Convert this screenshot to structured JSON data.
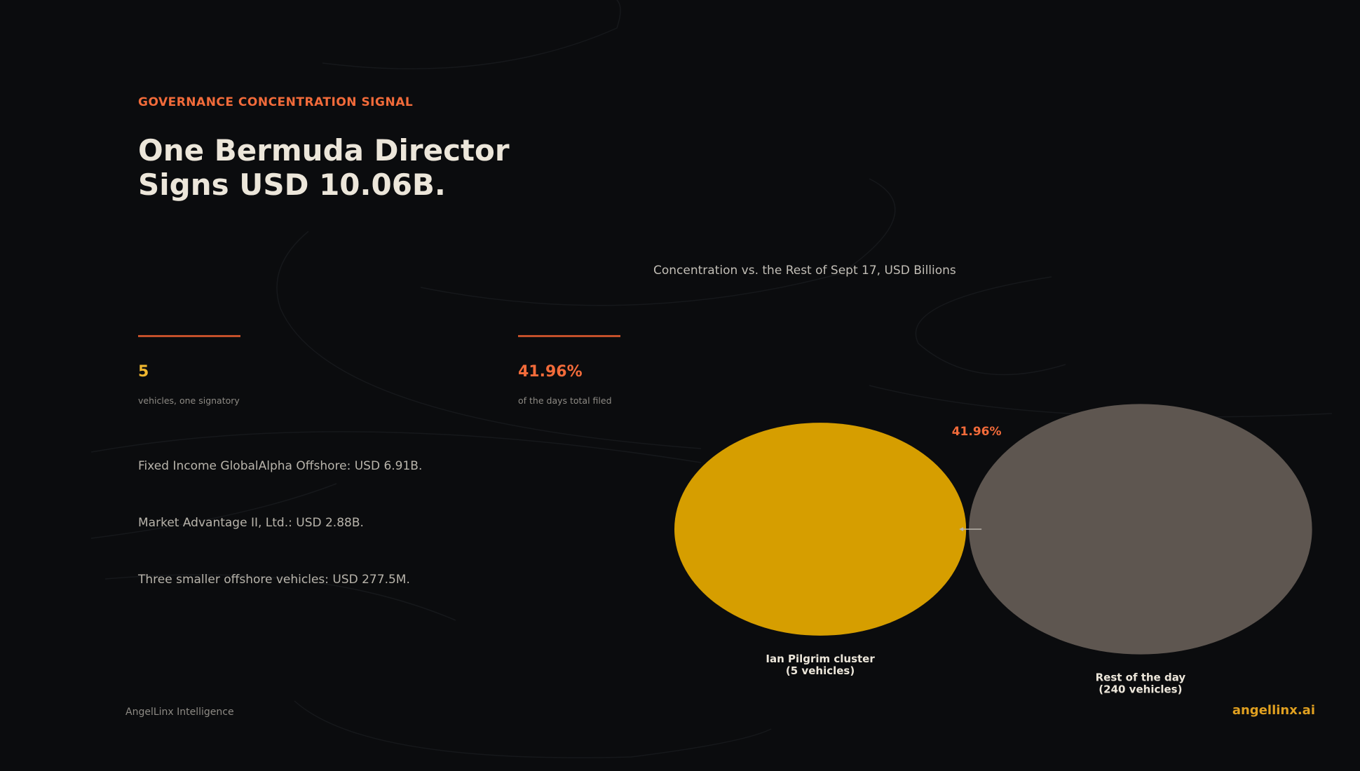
{
  "kicker": "GOVERNANCE CONCENTRATION SIGNAL",
  "title": "One Bermuda Director\nSigns USD 10.06B.",
  "stats": [
    {
      "value": "5",
      "caption": "vehicles, one signatory"
    },
    {
      "value": "41.96%",
      "caption": "of the days total filed"
    }
  ],
  "bullets": [
    "Fixed Income GlobalAlpha Offshore: USD 6.91B.",
    "Market Advantage II, Ltd.: USD 2.88B.",
    "Three smaller offshore vehicles: USD 277.5M."
  ],
  "footer": {
    "left": "AngelLinx Intelligence",
    "right": "angellinx.ai"
  },
  "chart_data": {
    "type": "bubble",
    "title": "Concentration vs. the Rest of Sept 17, USD Billions",
    "categories": [
      "Ian Pilgrim cluster\n(5 vehicles)",
      "Rest of the day\n(240 vehicles)"
    ],
    "values": [
      10.06,
      13.92
    ],
    "colors": [
      "#d69e00",
      "#5e5650"
    ],
    "annotation": "41.96%"
  }
}
